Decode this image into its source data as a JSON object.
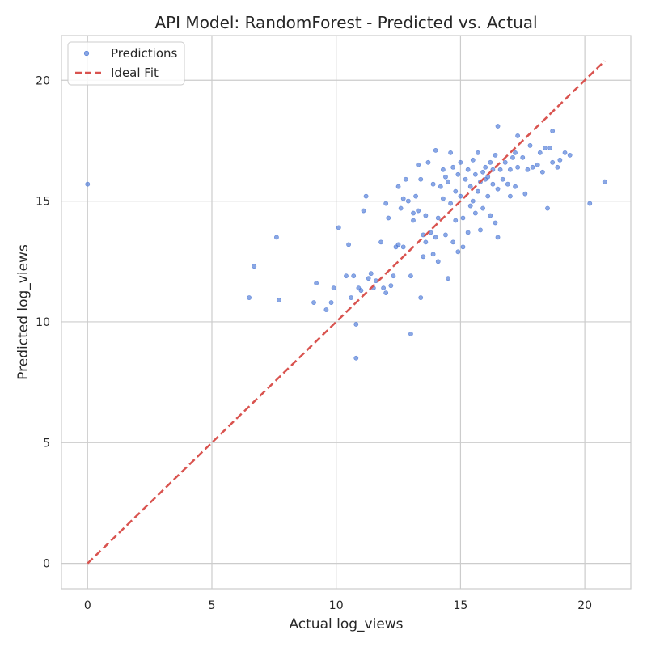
{
  "chart_data": {
    "type": "scatter",
    "title": "API Model: RandomForest - Predicted vs. Actual",
    "xlabel": "Actual log_views",
    "ylabel": "Predicted log_views",
    "xlim": [
      -1.05,
      21.85
    ],
    "ylim": [
      -1.05,
      21.85
    ],
    "xticks": [
      0,
      5,
      10,
      15,
      20
    ],
    "yticks": [
      0,
      5,
      10,
      15,
      20
    ],
    "grid": true,
    "legend_position": "top-left",
    "colors": {
      "points": "#4c78d6",
      "ideal_line": "#d9534f"
    },
    "series": [
      {
        "name": "Predictions",
        "kind": "scatter",
        "points": [
          [
            0,
            15.7
          ],
          [
            6.5,
            11.0
          ],
          [
            6.7,
            12.3
          ],
          [
            7.6,
            13.5
          ],
          [
            7.7,
            10.9
          ],
          [
            9.1,
            10.8
          ],
          [
            9.2,
            11.6
          ],
          [
            9.6,
            10.5
          ],
          [
            9.8,
            10.8
          ],
          [
            9.9,
            11.4
          ],
          [
            10.1,
            13.9
          ],
          [
            10.4,
            11.9
          ],
          [
            10.5,
            13.2
          ],
          [
            10.6,
            11.0
          ],
          [
            10.7,
            11.9
          ],
          [
            10.8,
            9.9
          ],
          [
            10.8,
            8.5
          ],
          [
            10.9,
            11.4
          ],
          [
            11.0,
            11.3
          ],
          [
            11.1,
            14.6
          ],
          [
            11.2,
            15.2
          ],
          [
            11.3,
            11.8
          ],
          [
            11.4,
            12.0
          ],
          [
            11.5,
            11.4
          ],
          [
            11.6,
            11.7
          ],
          [
            11.8,
            13.3
          ],
          [
            11.9,
            11.4
          ],
          [
            12.0,
            11.2
          ],
          [
            12.0,
            14.9
          ],
          [
            12.1,
            14.3
          ],
          [
            12.2,
            11.5
          ],
          [
            12.3,
            11.9
          ],
          [
            12.4,
            13.1
          ],
          [
            12.5,
            13.2
          ],
          [
            12.5,
            15.6
          ],
          [
            12.6,
            14.7
          ],
          [
            12.7,
            15.1
          ],
          [
            12.7,
            13.1
          ],
          [
            12.8,
            15.9
          ],
          [
            12.9,
            15.0
          ],
          [
            13.0,
            11.9
          ],
          [
            13.0,
            9.5
          ],
          [
            13.1,
            14.2
          ],
          [
            13.1,
            14.5
          ],
          [
            13.2,
            15.2
          ],
          [
            13.3,
            14.6
          ],
          [
            13.3,
            16.5
          ],
          [
            13.4,
            15.9
          ],
          [
            13.4,
            11.0
          ],
          [
            13.5,
            12.7
          ],
          [
            13.5,
            13.6
          ],
          [
            13.6,
            13.3
          ],
          [
            13.6,
            14.4
          ],
          [
            13.7,
            16.6
          ],
          [
            13.8,
            13.7
          ],
          [
            13.9,
            12.8
          ],
          [
            13.9,
            15.7
          ],
          [
            14.0,
            17.1
          ],
          [
            14.0,
            13.5
          ],
          [
            14.1,
            12.5
          ],
          [
            14.1,
            14.3
          ],
          [
            14.2,
            15.6
          ],
          [
            14.3,
            16.3
          ],
          [
            14.3,
            15.1
          ],
          [
            14.4,
            16.0
          ],
          [
            14.4,
            13.6
          ],
          [
            14.5,
            15.8
          ],
          [
            14.5,
            11.8
          ],
          [
            14.6,
            17.0
          ],
          [
            14.6,
            14.9
          ],
          [
            14.7,
            16.4
          ],
          [
            14.7,
            13.3
          ],
          [
            14.8,
            15.4
          ],
          [
            14.8,
            14.2
          ],
          [
            14.9,
            12.9
          ],
          [
            14.9,
            16.1
          ],
          [
            15.0,
            15.2
          ],
          [
            15.0,
            16.6
          ],
          [
            15.1,
            13.1
          ],
          [
            15.1,
            14.3
          ],
          [
            15.2,
            15.9
          ],
          [
            15.3,
            16.3
          ],
          [
            15.3,
            13.7
          ],
          [
            15.4,
            14.8
          ],
          [
            15.4,
            15.6
          ],
          [
            15.5,
            16.7
          ],
          [
            15.5,
            15.0
          ],
          [
            15.6,
            16.1
          ],
          [
            15.6,
            14.5
          ],
          [
            15.7,
            17.0
          ],
          [
            15.7,
            15.4
          ],
          [
            15.8,
            15.8
          ],
          [
            15.8,
            13.8
          ],
          [
            15.9,
            16.2
          ],
          [
            15.9,
            14.7
          ],
          [
            16.0,
            15.9
          ],
          [
            16.0,
            16.4
          ],
          [
            16.1,
            15.2
          ],
          [
            16.1,
            16.0
          ],
          [
            16.2,
            16.6
          ],
          [
            16.2,
            14.4
          ],
          [
            16.3,
            16.3
          ],
          [
            16.3,
            15.7
          ],
          [
            16.4,
            16.9
          ],
          [
            16.4,
            14.1
          ],
          [
            16.5,
            15.5
          ],
          [
            16.5,
            18.1
          ],
          [
            16.5,
            13.5
          ],
          [
            16.6,
            16.3
          ],
          [
            16.7,
            15.9
          ],
          [
            16.8,
            16.6
          ],
          [
            16.9,
            15.7
          ],
          [
            17.0,
            16.3
          ],
          [
            17.0,
            15.2
          ],
          [
            17.1,
            16.8
          ],
          [
            17.2,
            17.0
          ],
          [
            17.2,
            15.6
          ],
          [
            17.3,
            16.4
          ],
          [
            17.3,
            17.7
          ],
          [
            17.5,
            16.8
          ],
          [
            17.6,
            15.3
          ],
          [
            17.7,
            16.3
          ],
          [
            17.8,
            17.3
          ],
          [
            17.9,
            16.4
          ],
          [
            18.1,
            16.5
          ],
          [
            18.2,
            17.0
          ],
          [
            18.3,
            16.2
          ],
          [
            18.4,
            17.2
          ],
          [
            18.5,
            14.7
          ],
          [
            18.6,
            17.2
          ],
          [
            18.7,
            16.6
          ],
          [
            18.7,
            17.9
          ],
          [
            18.9,
            16.4
          ],
          [
            19.0,
            16.7
          ],
          [
            19.2,
            17.0
          ],
          [
            19.4,
            16.9
          ],
          [
            20.2,
            14.9
          ],
          [
            20.8,
            15.8
          ]
        ]
      },
      {
        "name": "Ideal Fit",
        "kind": "line",
        "style": "dashed",
        "points": [
          [
            0,
            0
          ],
          [
            20.8,
            20.8
          ]
        ]
      }
    ]
  }
}
